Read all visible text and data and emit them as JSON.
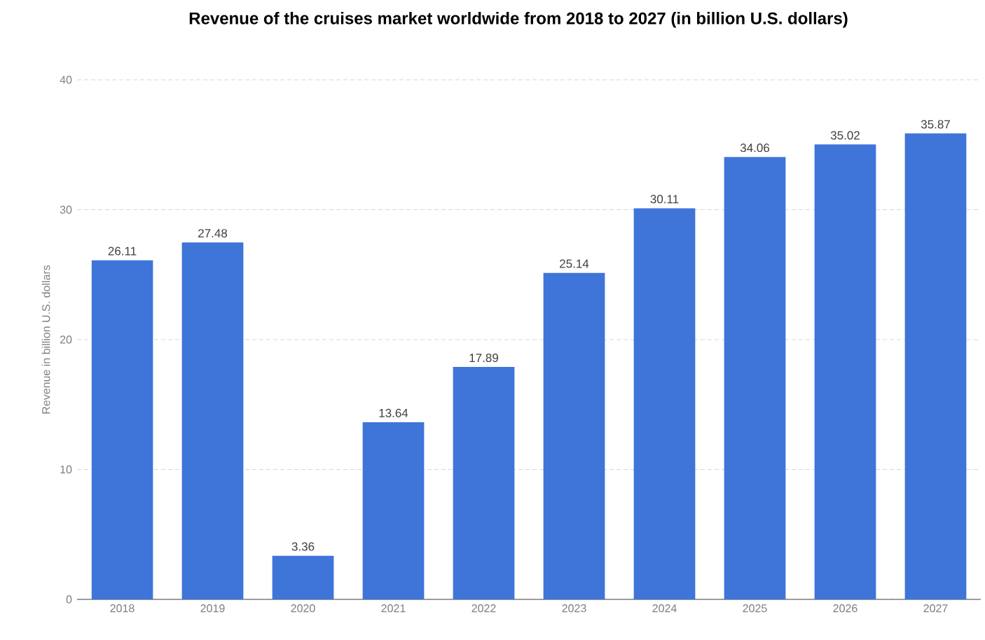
{
  "chart_data": {
    "type": "bar",
    "title": "Revenue of the cruises market worldwide from 2018 to 2027 (in billion U.S. dollars)",
    "ylabel": "Revenue in billion U.S. dollars",
    "categories": [
      "2018",
      "2019",
      "2020",
      "2021",
      "2022",
      "2023",
      "2024",
      "2025",
      "2026",
      "2027"
    ],
    "values": [
      26.11,
      27.48,
      3.36,
      13.64,
      17.89,
      25.14,
      30.11,
      34.06,
      35.02,
      35.87
    ],
    "value_labels": [
      "26.11",
      "27.48",
      "3.36",
      "13.64",
      "17.89",
      "25.14",
      "30.11",
      "34.06",
      "35.02",
      "35.87"
    ],
    "color": "#3f74d9",
    "ylim": [
      0,
      40
    ],
    "yticks": [
      0,
      10,
      20,
      30,
      40
    ],
    "grid": "y"
  }
}
